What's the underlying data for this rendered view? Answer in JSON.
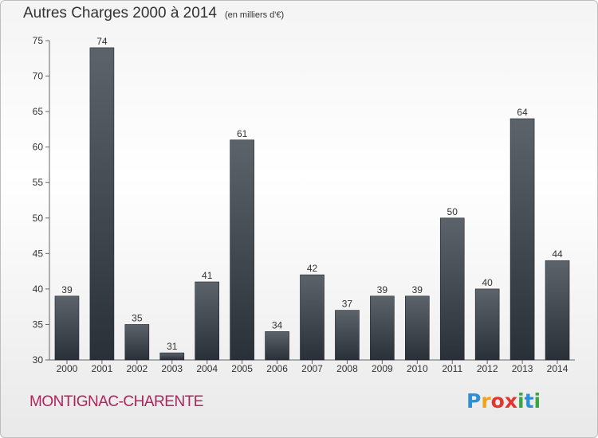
{
  "header": {
    "title": "Autres Charges 2000 à 2014",
    "subtitle": "(en milliers d'€)"
  },
  "footer": {
    "city": "MONTIGNAC-CHARENTE",
    "logo_letters": [
      "P",
      "r",
      "o",
      "x",
      "i",
      "t",
      "i"
    ],
    "logo_colors": [
      "#2f8fd6",
      "#f0a21c",
      "#e3352d",
      "#e3352d",
      "#3aa640",
      "#2f8fd6",
      "#3aa640"
    ]
  },
  "chart_data": {
    "type": "bar",
    "categories": [
      "2000",
      "2001",
      "2002",
      "2003",
      "2004",
      "2005",
      "2006",
      "2007",
      "2008",
      "2009",
      "2010",
      "2011",
      "2012",
      "2013",
      "2014"
    ],
    "values": [
      39,
      74,
      35,
      31,
      41,
      61,
      34,
      42,
      37,
      39,
      39,
      50,
      40,
      64,
      44
    ],
    "data_labels": [
      "39",
      "74",
      "35",
      "31",
      "41",
      "61",
      "34",
      "42",
      "37",
      "39",
      "39",
      "50",
      "40",
      "64",
      "44"
    ],
    "title": "Autres Charges 2000 à 2014",
    "ylim": [
      30,
      75
    ],
    "yticks": [
      "30",
      "35",
      "40",
      "45",
      "50",
      "55",
      "60",
      "65",
      "70",
      "75"
    ],
    "grid": false,
    "bar_color_top": "#5c636b",
    "bar_color_bottom": "#2a3038"
  }
}
